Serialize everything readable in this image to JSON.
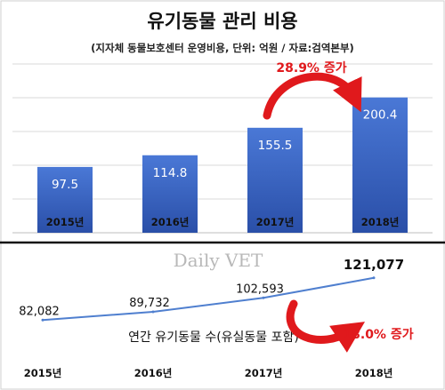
{
  "watermark": "Daily VET",
  "colors": {
    "bar": "#3a64c4",
    "bar_dark": "#2c4fa6",
    "line": "#4f7fcf",
    "accent": "#e0191c",
    "grid": "#d8d8d8"
  },
  "chart_data": [
    {
      "type": "bar",
      "title": "유기동물 관리 비용",
      "subtitle": "(지자체 동물보호센터 운영비용, 단위: 억원 / 자료:검역본부)",
      "categories": [
        "2015년",
        "2016년",
        "2017년",
        "2018년"
      ],
      "values": [
        97.5,
        114.8,
        155.5,
        200.4
      ],
      "value_labels": [
        "97.5",
        "114.8",
        "155.5",
        "200.4"
      ],
      "ylim": [
        0,
        250
      ],
      "grid": true,
      "annotation": "28.9% 증가"
    },
    {
      "type": "line",
      "label": "연간 유기동물 수(유실동물 포함)",
      "categories": [
        "2015년",
        "2016년",
        "2017년",
        "2018년"
      ],
      "values": [
        82082,
        89732,
        102593,
        121077
      ],
      "value_labels": [
        "82,082",
        "89,732",
        "102,593",
        "121,077"
      ],
      "annotation": "18.0% 증가"
    }
  ]
}
